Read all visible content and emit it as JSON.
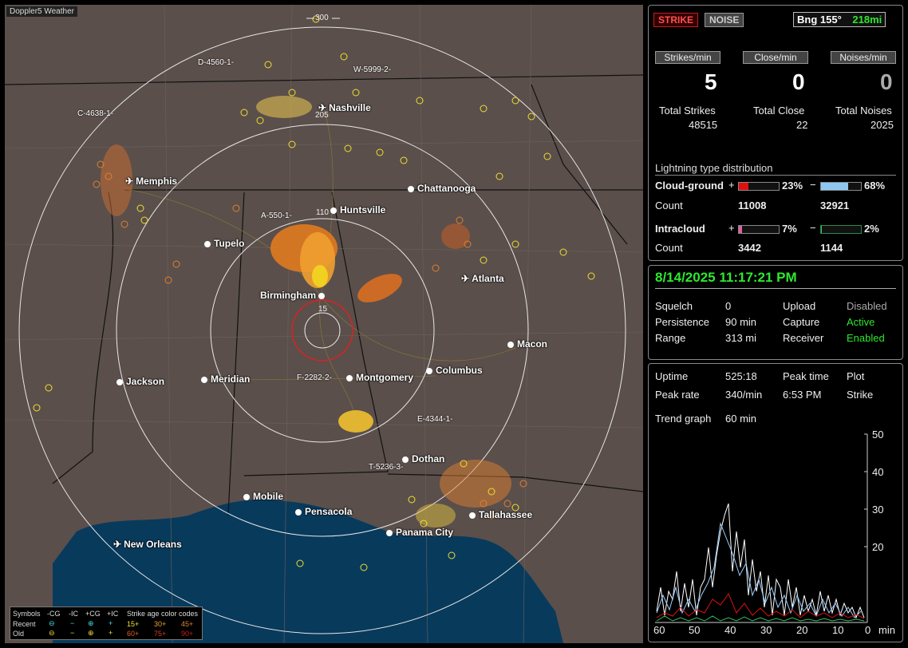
{
  "app_title": "Doppler5 Weather",
  "map": {
    "ring_labels": [
      "300",
      "205",
      "110",
      "15"
    ],
    "cities": [
      {
        "name": "Nashville",
        "icon": "airport-icon"
      },
      {
        "name": "Memphis",
        "icon": "airport-icon"
      },
      {
        "name": "Chattanooga",
        "icon": "dot-icon"
      },
      {
        "name": "Huntsville",
        "icon": "dot-icon"
      },
      {
        "name": "Tupelo",
        "icon": "dot-icon"
      },
      {
        "name": "Atlanta",
        "icon": "airport-icon"
      },
      {
        "name": "Birmingham",
        "icon": "dot-icon"
      },
      {
        "name": "Macon",
        "icon": "dot-icon"
      },
      {
        "name": "Jackson",
        "icon": "dot-icon"
      },
      {
        "name": "Meridian",
        "icon": "dot-icon"
      },
      {
        "name": "Montgomery",
        "icon": "dot-icon"
      },
      {
        "name": "Columbus",
        "icon": "dot-icon"
      },
      {
        "name": "Dothan",
        "icon": "dot-icon"
      },
      {
        "name": "Mobile",
        "icon": "dot-icon"
      },
      {
        "name": "Pensacola",
        "icon": "dot-icon"
      },
      {
        "name": "Tallahassee",
        "icon": "dot-icon"
      },
      {
        "name": "Panama City",
        "icon": "dot-icon"
      },
      {
        "name": "New Orleans",
        "icon": "airport-icon"
      }
    ],
    "cells": [
      "D-4560-1-",
      "W-5999-2-",
      "C-4638-1-",
      "A-550-1-",
      "F-2282-2-",
      "E-4344-1-",
      "T-5236-3-"
    ],
    "legend": {
      "symbols_label": "Symbols",
      "cols": [
        "-CG",
        "-IC",
        "+CG",
        "+IC"
      ],
      "recent_label": "Recent",
      "old_label": "Old",
      "age_title": "Strike age color codes",
      "recent_ages": [
        "15+",
        "30+",
        "45+"
      ],
      "old_ages": [
        "60+",
        "75+",
        "90+"
      ]
    }
  },
  "top": {
    "strike_btn": "STRIKE",
    "noise_btn": "NOISE",
    "bearing": "Bng 155°",
    "distance": "218mi",
    "rates": [
      {
        "label": "Strikes/min",
        "value": "5",
        "total_label": "Total Strikes",
        "total": "48515"
      },
      {
        "label": "Close/min",
        "value": "0",
        "total_label": "Total Close",
        "total": "22"
      },
      {
        "label": "Noises/min",
        "value": "0",
        "total_label": "Total Noises",
        "total": "2025"
      }
    ],
    "dist_title": "Lightning type distribution",
    "cg": {
      "label": "Cloud-ground",
      "pos_pct": "23%",
      "neg_pct": "68%",
      "count_label": "Count",
      "pos_count": "11008",
      "neg_count": "32921",
      "pos_frac": 0.23,
      "neg_frac": 0.68
    },
    "ic": {
      "label": "Intracloud",
      "pos_pct": "7%",
      "neg_pct": "2%",
      "count_label": "Count",
      "pos_count": "3442",
      "neg_count": "1144",
      "pos_frac": 0.07,
      "neg_frac": 0.02
    }
  },
  "status": {
    "datetime": "8/14/2025 11:17:21 PM",
    "rows": [
      {
        "k1": "Squelch",
        "v1": "0",
        "k2": "Upload",
        "v2": "Disabled"
      },
      {
        "k1": "Persistence",
        "v1": "90 min",
        "k2": "Capture",
        "v2": "Active"
      },
      {
        "k1": "Range",
        "v1": "313 mi",
        "k2": "Receiver",
        "v2": "Enabled"
      }
    ]
  },
  "stats": {
    "uptime_label": "Uptime",
    "uptime": "525:18",
    "peak_time_label": "Peak time",
    "plot_label": "Plot",
    "peak_rate_label": "Peak rate",
    "peak_rate": "340/min",
    "peak_time": "6:53 PM",
    "plot": "Strike",
    "trend_label": "Trend graph",
    "trend": "60 min",
    "y_ticks": [
      "50",
      "40",
      "30",
      "20"
    ],
    "x_ticks": [
      "60",
      "50",
      "40",
      "30",
      "20",
      "10",
      "0"
    ],
    "x_unit": "min"
  },
  "colors": {
    "green": "#2ee82e",
    "red_fill": "#e01010",
    "blue_fill": "#8ec8f0",
    "pink_fill": "#e060a0",
    "strike_btn": "#ff5050",
    "map_bg": "#5a4f4b",
    "water": "#083a5c"
  }
}
